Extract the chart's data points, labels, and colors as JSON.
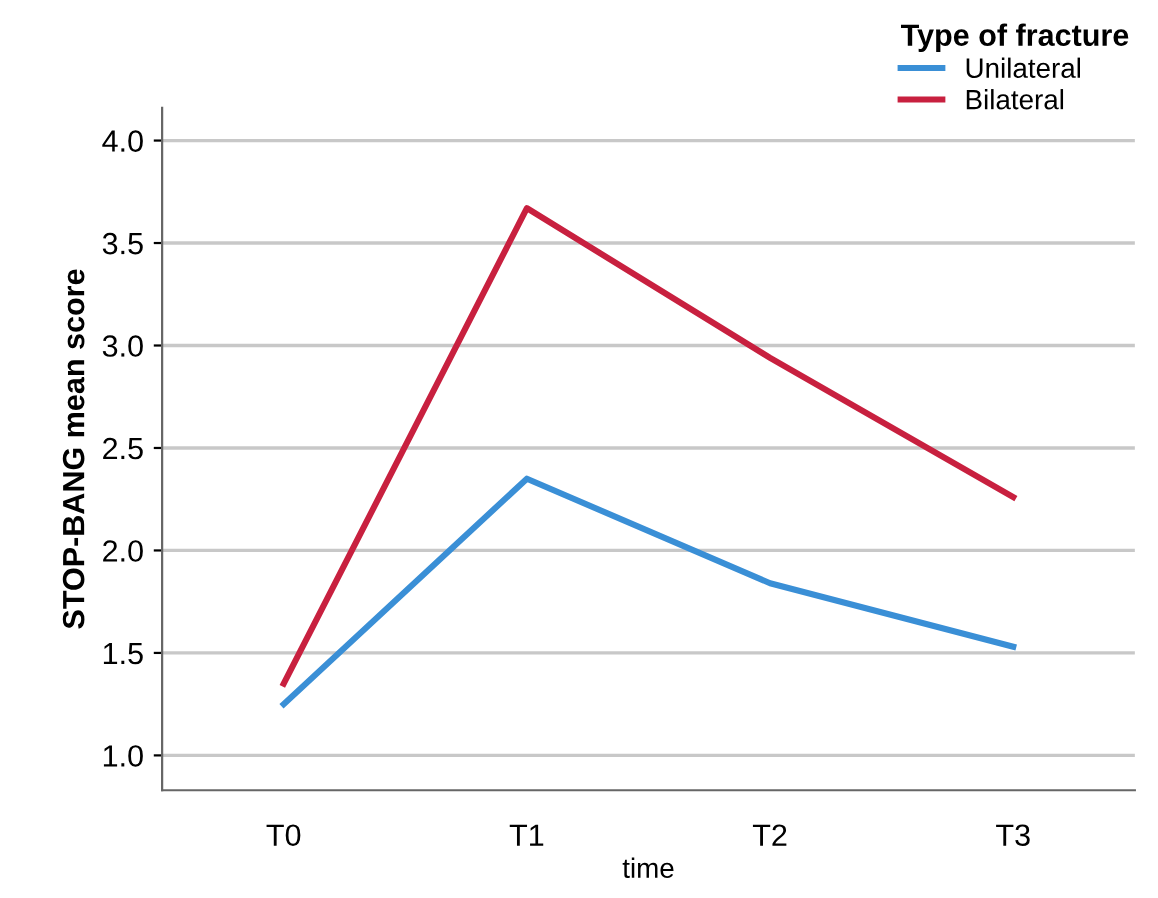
{
  "chart_data": {
    "type": "line",
    "xlabel": "time",
    "ylabel": "STOP-BANG mean score",
    "legend_title": "Type of fracture",
    "categories": [
      "T0",
      "T1",
      "T2",
      "T3"
    ],
    "series": [
      {
        "name": "Unilateral",
        "color": "#3a8fd6",
        "values": [
          1.25,
          2.35,
          1.84,
          1.53
        ]
      },
      {
        "name": "Bilateral",
        "color": "#c8203f",
        "values": [
          1.35,
          3.67,
          2.94,
          2.26
        ]
      }
    ],
    "ylim": [
      0.83,
      4.16
    ],
    "yticks": [
      {
        "value": 1.0,
        "label": "1.0"
      },
      1.5,
      {
        "value": 2.0,
        "label": "2.0"
      },
      2.5,
      {
        "value": 3.0,
        "label": "3.0"
      },
      3.5,
      {
        "value": 4.0,
        "label": "4.0"
      }
    ],
    "grid": "y",
    "legend": "top right",
    "marker": "none",
    "line_style": "solid"
  }
}
